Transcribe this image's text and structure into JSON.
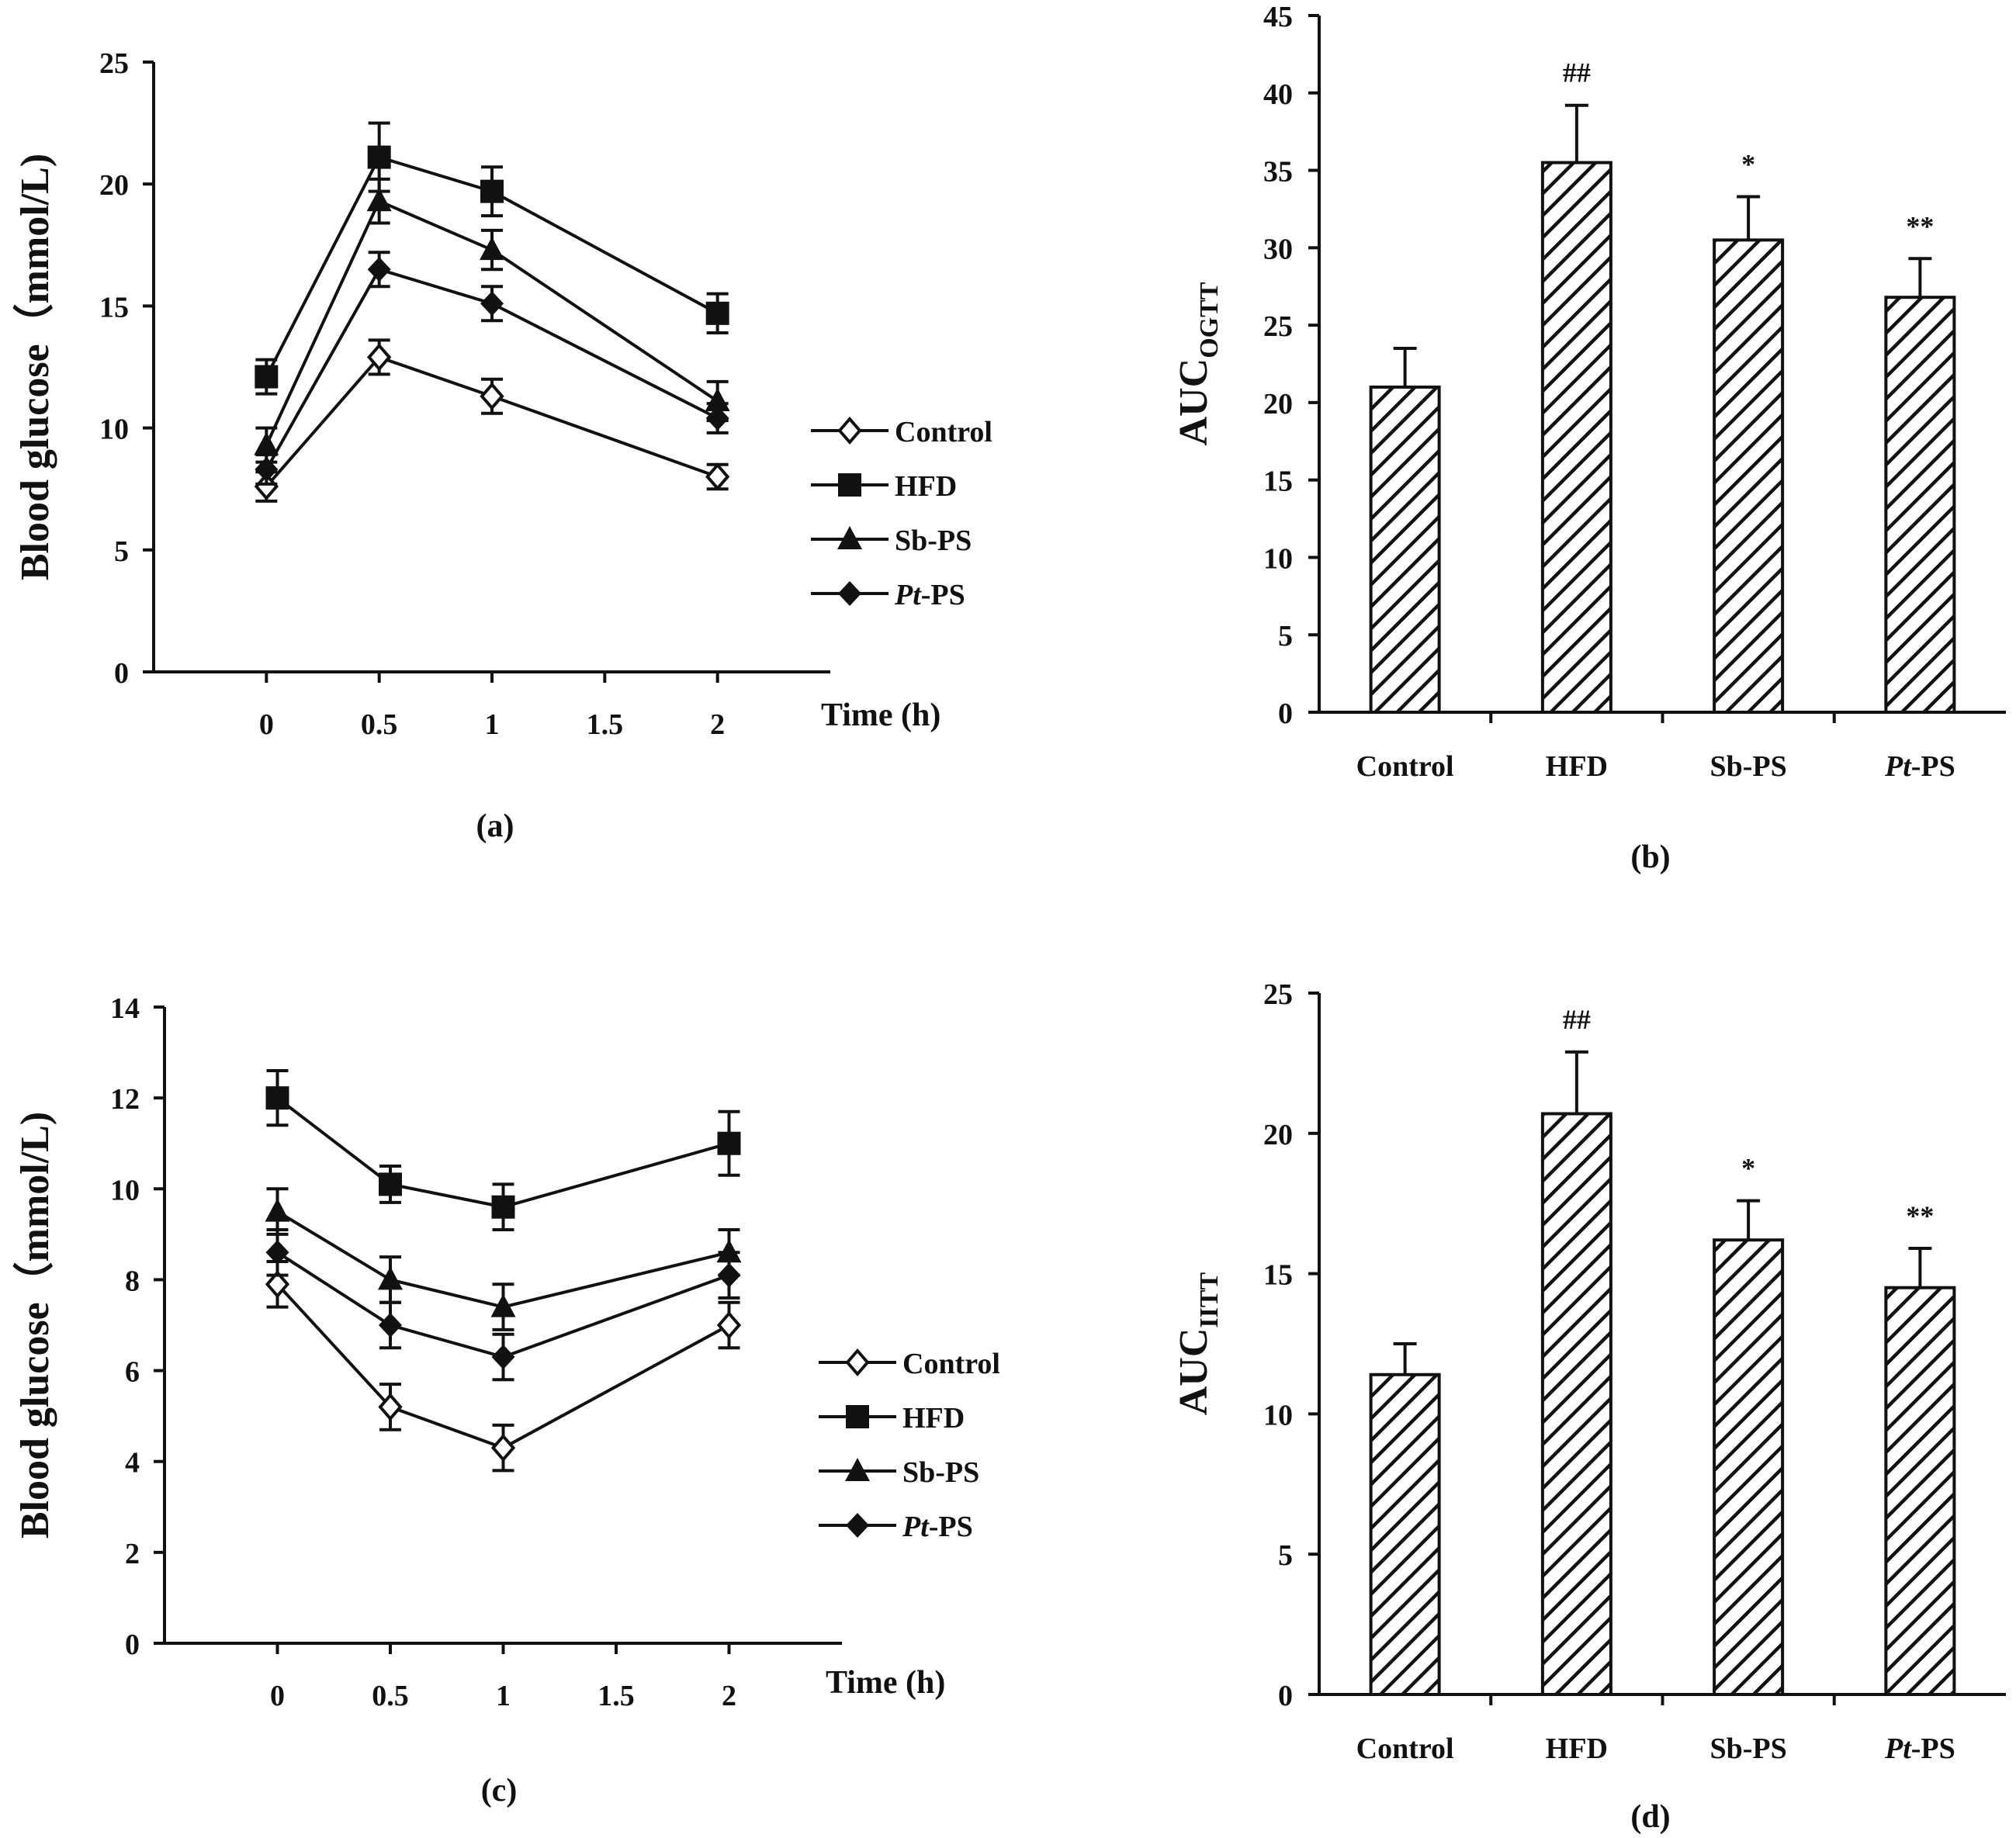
{
  "chart_data": [
    {
      "panel": "(a)",
      "type": "line",
      "ylabel": "Blood glucose（mmol/L)",
      "xlabel": "Time (h)",
      "ylim": [
        0,
        25
      ],
      "yticks": [
        "0",
        "5",
        "10",
        "15",
        "20",
        "25"
      ],
      "xlim": [
        -0.5,
        2.5
      ],
      "xticks": [
        "0",
        "0.5",
        "1",
        "1.5",
        "2"
      ],
      "x": [
        0,
        0.5,
        1,
        2
      ],
      "legend_position": "right",
      "series": [
        {
          "name": "Control",
          "marker": "diamond-open",
          "values": [
            7.6,
            12.9,
            11.3,
            8.0
          ],
          "errors": [
            0.6,
            0.7,
            0.7,
            0.5
          ]
        },
        {
          "name": "HFD",
          "marker": "square",
          "values": [
            12.1,
            21.1,
            19.7,
            14.7
          ],
          "errors": [
            0.7,
            1.4,
            1.0,
            0.8
          ]
        },
        {
          "name": "Sb-PS",
          "marker": "triangle",
          "values": [
            9.3,
            19.3,
            17.3,
            11.1
          ],
          "errors": [
            0.7,
            0.9,
            0.8,
            0.8
          ]
        },
        {
          "name": "Pt-PS",
          "name_parts": [
            "Pt",
            "-PS"
          ],
          "marker": "diamond",
          "values": [
            8.3,
            16.5,
            15.1,
            10.4
          ],
          "errors": [
            0.6,
            0.7,
            0.7,
            0.6
          ]
        }
      ]
    },
    {
      "panel": "(b)",
      "type": "bar",
      "ylabel": "AUC",
      "ylabel_sub": "OGTT",
      "ylim": [
        0,
        45
      ],
      "yticks": [
        "0",
        "5",
        "10",
        "15",
        "20",
        "25",
        "30",
        "35",
        "40",
        "45"
      ],
      "categories": [
        "Control",
        "HFD",
        "Sb-PS",
        "Pt-PS"
      ],
      "values": [
        21.0,
        35.5,
        30.5,
        26.8
      ],
      "errors": [
        2.5,
        3.7,
        2.8,
        2.5
      ],
      "annotations": [
        "",
        "##",
        "*",
        "**"
      ]
    },
    {
      "panel": "(c)",
      "type": "line",
      "ylabel": "Blood glucose（mmol/L)",
      "xlabel": "Time (h)",
      "ylim": [
        0,
        14
      ],
      "yticks": [
        "0",
        "2",
        "4",
        "6",
        "8",
        "10",
        "12",
        "14"
      ],
      "xlim": [
        -0.5,
        2.5
      ],
      "xticks": [
        "0",
        "0.5",
        "1",
        "1.5",
        "2"
      ],
      "x": [
        0,
        0.5,
        1,
        2
      ],
      "legend_position": "right",
      "series": [
        {
          "name": "Control",
          "marker": "diamond-open",
          "values": [
            7.9,
            5.2,
            4.3,
            7.0
          ],
          "errors": [
            0.5,
            0.5,
            0.5,
            0.5
          ]
        },
        {
          "name": "HFD",
          "marker": "square",
          "values": [
            12.0,
            10.1,
            9.6,
            11.0
          ],
          "errors": [
            0.6,
            0.4,
            0.5,
            0.7
          ]
        },
        {
          "name": "Sb-PS",
          "marker": "triangle",
          "values": [
            9.5,
            8.0,
            7.4,
            8.6
          ],
          "errors": [
            0.5,
            0.5,
            0.5,
            0.5
          ]
        },
        {
          "name": "Pt-PS",
          "name_parts": [
            "Pt",
            "-PS"
          ],
          "marker": "diamond",
          "values": [
            8.6,
            7.0,
            6.3,
            8.1
          ],
          "errors": [
            0.5,
            0.5,
            0.5,
            0.5
          ]
        }
      ]
    },
    {
      "panel": "(d)",
      "type": "bar",
      "ylabel": "AUC",
      "ylabel_sub": "IITT",
      "ylim": [
        0,
        25
      ],
      "yticks": [
        "0",
        "5",
        "10",
        "15",
        "20",
        "25"
      ],
      "categories": [
        "Control",
        "HFD",
        "Sb-PS",
        "Pt-PS"
      ],
      "values": [
        11.4,
        20.7,
        16.2,
        14.5
      ],
      "errors": [
        1.1,
        2.2,
        1.4,
        1.4
      ],
      "annotations": [
        "",
        "##",
        "*",
        "**"
      ]
    }
  ]
}
